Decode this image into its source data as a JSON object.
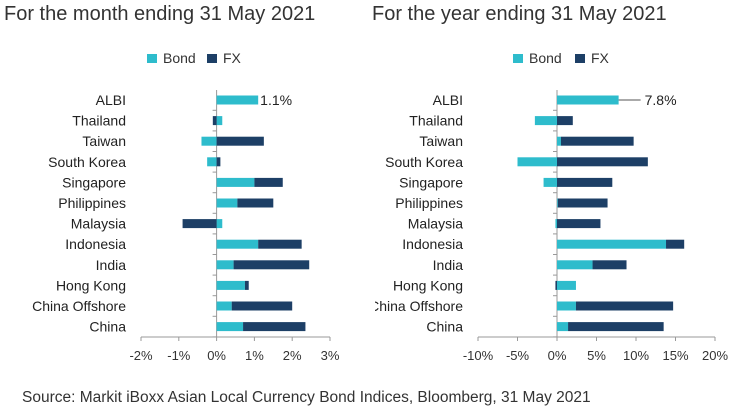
{
  "source": "Source: Markit iBoxx Asian Local Currency Bond Indices, Bloomberg, 31 May 2021",
  "colors": {
    "bond": "#2ebccc",
    "fx": "#1d3f66",
    "axis": "#999999"
  },
  "chart_data": [
    {
      "type": "bar",
      "orientation": "horizontal",
      "stacked": true,
      "title": "For the month ending 31 May 2021",
      "categories": [
        "ALBI",
        "Thailand",
        "Taiwan",
        "South Korea",
        "Singapore",
        "Philippines",
        "Malaysia",
        "Indonesia",
        "India",
        "Hong Kong",
        "China Offshore",
        "China"
      ],
      "series": [
        {
          "name": "Bond",
          "values": [
            1.1,
            0.15,
            -0.4,
            -0.25,
            1.0,
            0.55,
            0.15,
            1.1,
            0.45,
            0.75,
            0.4,
            0.7
          ]
        },
        {
          "name": "FX",
          "values": [
            0.0,
            -0.1,
            1.25,
            0.1,
            0.75,
            0.95,
            -0.9,
            1.15,
            2.0,
            0.1,
            1.6,
            1.65
          ]
        }
      ],
      "annotations": [
        {
          "category": "ALBI",
          "text": "1.1%"
        }
      ],
      "xlim": [
        -2,
        3
      ],
      "xticks": [
        "-2%",
        "-1%",
        "0%",
        "1%",
        "2%",
        "3%"
      ],
      "legend": "top",
      "grid": false
    },
    {
      "type": "bar",
      "orientation": "horizontal",
      "stacked": true,
      "title": "For the year ending 31 May 2021",
      "categories": [
        "ALBI",
        "Thailand",
        "Taiwan",
        "South Korea",
        "Singapore",
        "Philippines",
        "Malaysia",
        "Indonesia",
        "India",
        "Hong Kong",
        "China Offshore",
        "China"
      ],
      "series": [
        {
          "name": "Bond",
          "values": [
            7.8,
            -2.8,
            0.5,
            -5.0,
            -1.7,
            0.1,
            -0.2,
            13.8,
            4.5,
            2.4,
            2.4,
            1.4
          ]
        },
        {
          "name": "FX",
          "values": [
            0.0,
            2.0,
            9.2,
            11.5,
            7.0,
            6.3,
            5.5,
            2.3,
            4.3,
            -0.2,
            12.3,
            12.1
          ]
        }
      ],
      "annotations": [
        {
          "category": "ALBI",
          "text": "7.8%"
        }
      ],
      "xlim": [
        -10,
        20
      ],
      "xticks": [
        "-10%",
        "-5%",
        "0%",
        "5%",
        "10%",
        "15%",
        "20%"
      ],
      "legend": "top",
      "grid": false
    }
  ]
}
